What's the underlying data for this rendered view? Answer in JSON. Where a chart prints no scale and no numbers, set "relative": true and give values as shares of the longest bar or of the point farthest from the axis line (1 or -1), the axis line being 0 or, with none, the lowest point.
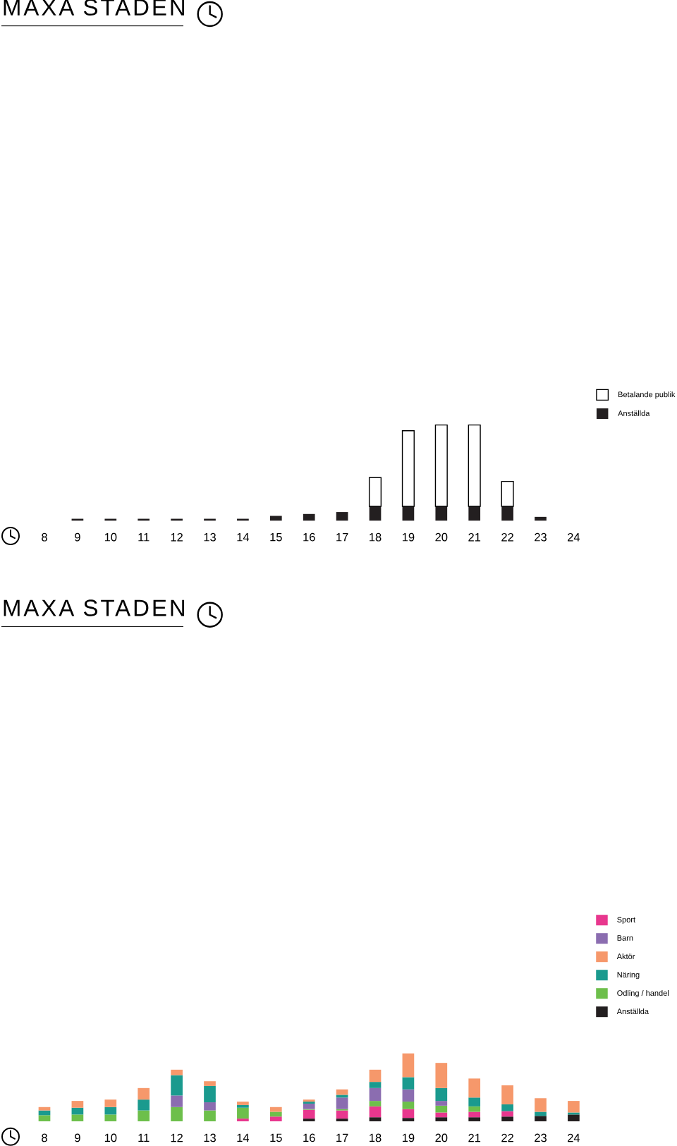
{
  "chart_data": [
    {
      "type": "bar",
      "title": "MAXA STADEN",
      "categories": [
        "8",
        "9",
        "10",
        "11",
        "12",
        "13",
        "14",
        "15",
        "16",
        "17",
        "18",
        "19",
        "20",
        "21",
        "22",
        "23",
        "24"
      ],
      "stacked": true,
      "relative": true,
      "legend": "top right",
      "series": [
        {
          "name": "Anställda",
          "color": "#231f20",
          "values": [
            null,
            0.02,
            0.02,
            0.02,
            0.02,
            0.02,
            0.02,
            0.05,
            0.07,
            0.09,
            0.15,
            0.15,
            0.15,
            0.15,
            0.15,
            0.04,
            null
          ]
        },
        {
          "name": "Betalande publik",
          "color": "#ffffff",
          "values": [
            null,
            null,
            null,
            null,
            null,
            null,
            null,
            null,
            null,
            null,
            0.3,
            0.79,
            0.85,
            0.85,
            0.26,
            null,
            null
          ]
        }
      ]
    },
    {
      "type": "bar",
      "title": "MAXA STADEN",
      "categories": [
        "8",
        "9",
        "10",
        "11",
        "12",
        "13",
        "14",
        "15",
        "16",
        "17",
        "18",
        "19",
        "20",
        "21",
        "22",
        "23",
        "24"
      ],
      "stacked": true,
      "relative": true,
      "legend": "top right",
      "series": [
        {
          "name": "Anställda",
          "color": "#231f20",
          "values": [
            null,
            null,
            null,
            null,
            null,
            null,
            null,
            null,
            0.04,
            0.04,
            0.06,
            0.05,
            0.06,
            0.06,
            0.07,
            0.08,
            0.1
          ]
        },
        {
          "name": "Sport",
          "color": "#e8378e",
          "values": [
            null,
            null,
            null,
            null,
            null,
            null,
            0.04,
            0.07,
            0.13,
            0.12,
            0.16,
            0.13,
            0.07,
            0.08,
            0.08,
            null,
            null
          ]
        },
        {
          "name": "Odling / handel",
          "color": "#6dbf4b",
          "values": [
            0.09,
            0.1,
            0.1,
            0.16,
            0.21,
            0.16,
            0.16,
            0.07,
            0.01,
            0.02,
            0.08,
            0.11,
            0.1,
            0.08,
            null,
            null,
            null
          ]
        },
        {
          "name": "Barn",
          "color": "#8b6db0",
          "values": [
            null,
            null,
            null,
            null,
            0.17,
            0.12,
            null,
            null,
            0.08,
            0.17,
            0.19,
            0.18,
            0.07,
            null,
            null,
            null,
            null
          ]
        },
        {
          "name": "Näring",
          "color": "#1a9a8e",
          "values": [
            0.07,
            0.1,
            0.11,
            0.16,
            0.3,
            0.24,
            0.04,
            null,
            0.03,
            0.04,
            0.09,
            0.18,
            0.19,
            0.13,
            0.1,
            0.06,
            0.03
          ]
        },
        {
          "name": "Aktör",
          "color": "#f6986b",
          "values": [
            0.05,
            0.1,
            0.11,
            0.17,
            0.08,
            0.07,
            0.05,
            0.07,
            0.03,
            0.08,
            0.18,
            0.35,
            0.37,
            0.28,
            0.28,
            0.2,
            0.17
          ]
        }
      ]
    }
  ]
}
